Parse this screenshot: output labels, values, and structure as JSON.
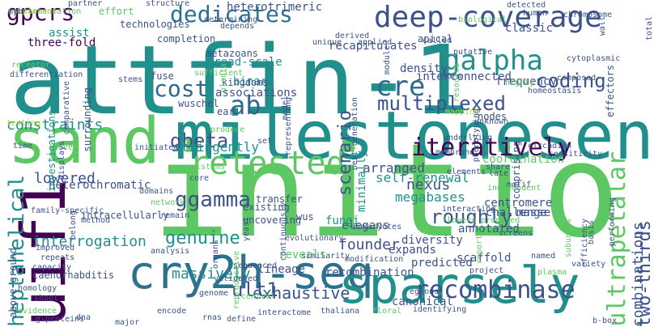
{
  "wordcloud": {
    "background": "#ffffff",
    "palette": [
      "#440154",
      "#3b528b",
      "#21908d",
      "#5dc863",
      "#fde725"
    ],
    "words": [
      {
        "text": "attfin-1",
        "color": "#21908d"
      },
      {
        "text": "initio",
        "color": "#5dc863"
      },
      {
        "text": "sand",
        "color": "#5dc863"
      },
      {
        "text": "milestonesen",
        "color": "#21908d"
      },
      {
        "text": "cry2h-seq",
        "color": "#2c728e"
      },
      {
        "text": "sparsely",
        "color": "#21908d"
      },
      {
        "text": "uif1",
        "color": "#440154"
      },
      {
        "text": "deep-coverage",
        "color": "#3b528b"
      },
      {
        "text": "retested",
        "color": "#5dc863"
      },
      {
        "text": "dedicates",
        "color": "#2c728e"
      },
      {
        "text": "gpcrs",
        "color": "#440154"
      },
      {
        "text": "galpha",
        "color": "#21908d"
      },
      {
        "text": "iteratively",
        "color": "#440154"
      },
      {
        "text": "multiplexed",
        "color": "#3b528b"
      },
      {
        "text": "recombinase",
        "color": "#3b528b"
      },
      {
        "text": "ultrapetalar",
        "color": "#5dc863"
      },
      {
        "text": "heptahelical",
        "color": "#21908d"
      },
      {
        "text": "cre",
        "color": "#31688e"
      },
      {
        "text": "ab",
        "color": "#31688e"
      },
      {
        "text": "cost",
        "color": "#31688e"
      },
      {
        "text": "coding",
        "color": "#3b528b"
      },
      {
        "text": "scenario",
        "color": "#3b528b"
      },
      {
        "text": "ggamma",
        "color": "#3b528b"
      },
      {
        "text": "gbeta",
        "color": "#3b528b"
      },
      {
        "text": "genuine",
        "color": "#21908d"
      },
      {
        "text": "roughly",
        "color": "#3b528b"
      },
      {
        "text": "two-thirds",
        "color": "#3b528b"
      },
      {
        "text": "combinations",
        "color": "#3b528b"
      },
      {
        "text": "interrogation",
        "color": "#21908d"
      },
      {
        "text": "ult1",
        "color": "#3b528b"
      },
      {
        "text": "exhaustive",
        "color": "#3b528b"
      },
      {
        "text": "nexus",
        "color": "#3b528b"
      },
      {
        "text": "lowered",
        "color": "#3b528b"
      },
      {
        "text": "constraints",
        "color": "#21908d"
      },
      {
        "text": "heterotrimeric",
        "color": "#3b528b"
      },
      {
        "text": "megabases",
        "color": "#21908d"
      },
      {
        "text": "self-renewal",
        "color": "#21908d"
      },
      {
        "text": "founder",
        "color": "#3b528b"
      },
      {
        "text": "massively",
        "color": "#21908d"
      },
      {
        "text": "stringently",
        "color": "#21908d"
      },
      {
        "text": "assist",
        "color": "#21908d"
      },
      {
        "text": "three-fold",
        "color": "#440154"
      },
      {
        "text": "recapitulates",
        "color": "#3b528b"
      },
      {
        "text": "binary",
        "color": "#21908d"
      },
      {
        "text": "minimally",
        "color": "#21908d"
      },
      {
        "text": "arranged",
        "color": "#3b528b"
      },
      {
        "text": "centromere",
        "color": "#3b528b"
      },
      {
        "text": "annotated",
        "color": "#3b528b"
      },
      {
        "text": "diversity",
        "color": "#3b528b"
      },
      {
        "text": "expands",
        "color": "#3b528b"
      },
      {
        "text": "predicted",
        "color": "#3b528b"
      },
      {
        "text": "scaffold",
        "color": "#3b528b"
      },
      {
        "text": "challenge",
        "color": "#3b528b"
      },
      {
        "text": "masse",
        "color": "#3b528b"
      },
      {
        "text": "elegans",
        "color": "#3b528b"
      },
      {
        "text": "heterochromatic",
        "color": "#3b528b"
      },
      {
        "text": "fungi",
        "color": "#21908d"
      },
      {
        "text": "reveals",
        "color": "#5dc863"
      },
      {
        "text": "recombination",
        "color": "#3b528b"
      },
      {
        "text": "lineage",
        "color": "#3b528b"
      },
      {
        "text": "canonical",
        "color": "#3b528b"
      },
      {
        "text": "caenorhabditis",
        "color": "#3b528b"
      },
      {
        "text": "uncovering",
        "color": "#3b528b"
      },
      {
        "text": "existing",
        "color": "#3b528b"
      },
      {
        "text": "transfer",
        "color": "#3b528b"
      },
      {
        "text": "coordination",
        "color": "#5dc863"
      },
      {
        "text": "frequency",
        "color": "#3b528b"
      },
      {
        "text": "interconnected",
        "color": "#3b528b"
      },
      {
        "text": "density",
        "color": "#3b528b"
      },
      {
        "text": "associations",
        "color": "#3b528b"
      },
      {
        "text": "kingdoms",
        "color": "#3b528b"
      },
      {
        "text": "broad-scale",
        "color": "#21908d"
      },
      {
        "text": "wuschel",
        "color": "#3b528b"
      },
      {
        "text": "metazoans",
        "color": "#3b528b"
      },
      {
        "text": "completion",
        "color": "#3b528b"
      },
      {
        "text": "classic",
        "color": "#3b528b"
      },
      {
        "text": "technologies",
        "color": "#3b528b"
      },
      {
        "text": "effort",
        "color": "#5dc863"
      },
      {
        "text": "testing",
        "color": "#aadc32"
      },
      {
        "text": "investigations",
        "color": "#21908d"
      },
      {
        "text": "intracellularly",
        "color": "#3b528b"
      },
      {
        "text": "above-ground",
        "color": "#3b528b"
      },
      {
        "text": "family-specific",
        "color": "#3b528b"
      },
      {
        "text": "improved",
        "color": "#3b528b"
      },
      {
        "text": "repeats",
        "color": "#3b528b"
      },
      {
        "text": "capacity",
        "color": "#3b528b"
      },
      {
        "text": "wus",
        "color": "#3b528b"
      },
      {
        "text": "similarity",
        "color": "#3b528b"
      },
      {
        "text": "project",
        "color": "#3b528b"
      },
      {
        "text": "screens",
        "color": "#3b528b"
      },
      {
        "text": "named",
        "color": "#3b528b"
      },
      {
        "text": "effectors",
        "color": "#3b528b"
      },
      {
        "text": "homeostasis",
        "color": "#3b528b"
      },
      {
        "text": "composed",
        "color": "#3b528b"
      },
      {
        "text": "cytoplasmic",
        "color": "#3b528b"
      },
      {
        "text": "chromosome",
        "color": "#3b528b"
      },
      {
        "text": "nodes",
        "color": "#3b528b"
      },
      {
        "text": "comprising",
        "color": "#3b528b"
      },
      {
        "text": "resource",
        "color": "#5dc863"
      },
      {
        "text": "next-generation",
        "color": "#3b528b"
      },
      {
        "text": "apical",
        "color": "#3b528b"
      },
      {
        "text": "called",
        "color": "#3b528b"
      },
      {
        "text": "putative",
        "color": "#3b528b"
      },
      {
        "text": "fuse",
        "color": "#3b528b"
      },
      {
        "text": "sufficient",
        "color": "#5dc863"
      },
      {
        "text": "surrounding",
        "color": "#3b528b"
      },
      {
        "text": "comparative",
        "color": "#3b528b"
      },
      {
        "text": "stems",
        "color": "#3b528b"
      },
      {
        "text": "ear",
        "color": "#3b528b"
      },
      {
        "text": "meristems",
        "color": "#5dc863"
      },
      {
        "text": "produce",
        "color": "#5dc863"
      },
      {
        "text": "mapping",
        "color": "#aadc32"
      },
      {
        "text": "phenotyping",
        "color": "#3b528b"
      },
      {
        "text": "form",
        "color": "#3b528b"
      },
      {
        "text": "unknown",
        "color": "#3b528b"
      },
      {
        "text": "sensitivity",
        "color": "#3b528b"
      },
      {
        "text": "circadian",
        "color": "#3b528b"
      },
      {
        "text": "late",
        "color": "#3b528b"
      },
      {
        "text": "motif",
        "color": "#3b528b"
      },
      {
        "text": "share",
        "color": "#3b528b"
      },
      {
        "text": "elements",
        "color": "#3b528b"
      },
      {
        "text": "membrane",
        "color": "#3b528b"
      },
      {
        "text": "underlying",
        "color": "#3b528b"
      },
      {
        "text": "set",
        "color": "#3b528b"
      },
      {
        "text": "time",
        "color": "#3b528b"
      },
      {
        "text": "leaves",
        "color": "#5dc863"
      },
      {
        "text": "displays",
        "color": "#3b528b"
      },
      {
        "text": "core",
        "color": "#3b528b"
      },
      {
        "text": "initiated",
        "color": "#3b528b"
      },
      {
        "text": "method",
        "color": "#3b528b"
      },
      {
        "text": "network",
        "color": "#5dc863"
      },
      {
        "text": "organs",
        "color": "#3b528b"
      },
      {
        "text": "reproductive",
        "color": "#5dc863"
      },
      {
        "text": "sequenced",
        "color": "#3b528b"
      },
      {
        "text": "continuously",
        "color": "#3b528b"
      },
      {
        "text": "evolutionary",
        "color": "#3b528b"
      },
      {
        "text": "eukaryotes",
        "color": "#3b528b"
      },
      {
        "text": "independent",
        "color": "#5dc863"
      },
      {
        "text": "interacting",
        "color": "#3b528b"
      },
      {
        "text": "flowers proposed",
        "color": "#5dc863"
      },
      {
        "text": "modification",
        "color": "#3b528b"
      },
      {
        "text": "regions",
        "color": "#3b528b"
      },
      {
        "text": "belong",
        "color": "#3b528b"
      },
      {
        "text": "analysis",
        "color": "#3b528b"
      },
      {
        "text": "domains",
        "color": "#3b528b"
      },
      {
        "text": "shoot",
        "color": "#3b528b"
      },
      {
        "text": "homology",
        "color": "#3b528b"
      },
      {
        "text": "evidence",
        "color": "#5dc863"
      },
      {
        "text": "remain",
        "color": "#3b528b"
      },
      {
        "text": "encode",
        "color": "#3b528b"
      },
      {
        "text": "genome",
        "color": "#3b528b"
      },
      {
        "text": "validated",
        "color": "#3b528b"
      },
      {
        "text": "define",
        "color": "#3b528b"
      },
      {
        "text": "dna",
        "color": "#3b528b"
      },
      {
        "text": "major",
        "color": "#3b528b"
      },
      {
        "text": "thaliana",
        "color": "#3b528b"
      },
      {
        "text": "interactome",
        "color": "#3b528b"
      },
      {
        "text": "g-proteins",
        "color": "#3b528b"
      },
      {
        "text": "central",
        "color": "#5dc863"
      },
      {
        "text": "floral",
        "color": "#5dc863"
      },
      {
        "text": "identifying",
        "color": "#3b528b"
      },
      {
        "text": "b-box",
        "color": "#3b528b"
      },
      {
        "text": "rnas",
        "color": "#3b528b"
      },
      {
        "text": "yeast",
        "color": "#3b528b"
      },
      {
        "text": "efficiency",
        "color": "#3b528b"
      },
      {
        "text": "reporter",
        "color": "#5dc863"
      },
      {
        "text": "subunits",
        "color": "#5dc863"
      },
      {
        "text": "plasma",
        "color": "#5dc863"
      },
      {
        "text": "variety",
        "color": "#3b528b"
      },
      {
        "text": "performing",
        "color": "#3b528b"
      },
      {
        "text": "basis",
        "color": "#3b528b"
      },
      {
        "text": "wall",
        "color": "#3b528b"
      },
      {
        "text": "total",
        "color": "#3b528b"
      },
      {
        "text": "human",
        "color": "#3b528b"
      },
      {
        "text": "detected",
        "color": "#3b528b"
      },
      {
        "text": "biological",
        "color": "#5dc863"
      },
      {
        "text": "partner",
        "color": "#3b528b"
      },
      {
        "text": "structure",
        "color": "#3b528b"
      },
      {
        "text": "determining",
        "color": "#3b528b"
      },
      {
        "text": "depends",
        "color": "#3b528b"
      },
      {
        "text": "derived",
        "color": "#3b528b"
      },
      {
        "text": "unique",
        "color": "#3b528b"
      },
      {
        "text": "applied",
        "color": "#3b528b"
      },
      {
        "text": "module",
        "color": "#3b528b"
      },
      {
        "text": "highly",
        "color": "#5dc863"
      },
      {
        "text": "planta",
        "color": "#5dc863"
      },
      {
        "text": "representing",
        "color": "#3b528b"
      },
      {
        "text": "model",
        "color": "#3b528b"
      },
      {
        "text": "receptor",
        "color": "#5dc863"
      },
      {
        "text": "differentiation",
        "color": "#3b528b"
      },
      {
        "text": "complementation",
        "color": "#5dc863"
      },
      {
        "text": "comparison",
        "color": "#aadc32"
      },
      {
        "text": "myb",
        "color": "#3b528b"
      }
    ]
  }
}
